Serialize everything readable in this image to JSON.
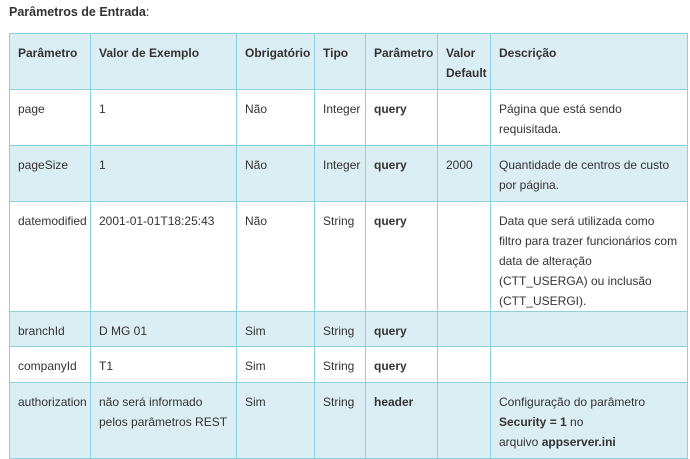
{
  "section_title": "Parâmetros de Entrada",
  "section_title_suffix": ":",
  "headers": [
    "Parâmetro",
    "Valor de Exemplo",
    "Obrigatório",
    "Tipo",
    "Parâmetro",
    "Valor Default",
    "Descrição"
  ],
  "rows": [
    [
      "page",
      "1",
      "Não",
      "Integer",
      "query",
      "",
      "Página que está sendo requisitada."
    ],
    [
      "pageSize",
      "1",
      "Não",
      "Integer",
      "query",
      "2000",
      "Quantidade de centros de custo por página."
    ],
    [
      "datemodified",
      "2001-01-01T18:25:43",
      "Não",
      "String",
      "query",
      "",
      "Data que será utilizada como filtro para trazer funcionários com data de alteração (CTT_USERGA) ou inclusão (CTT_USERGI)."
    ],
    [
      "branchId",
      "D MG 01",
      "Sim",
      "String",
      "query",
      "",
      ""
    ],
    [
      "companyId",
      "T1",
      "Sim",
      "String",
      "query",
      "",
      ""
    ],
    [
      "authorization",
      "não será informado pelos parâmetros REST",
      "Sim",
      "String",
      "header",
      "",
      ""
    ]
  ],
  "auth_description": {
    "line1": "Configuração do parâmetro",
    "bold1": "Security = 1",
    "mid": " no",
    "pre2": "arquivo ",
    "bold2": "appserver.ini"
  }
}
